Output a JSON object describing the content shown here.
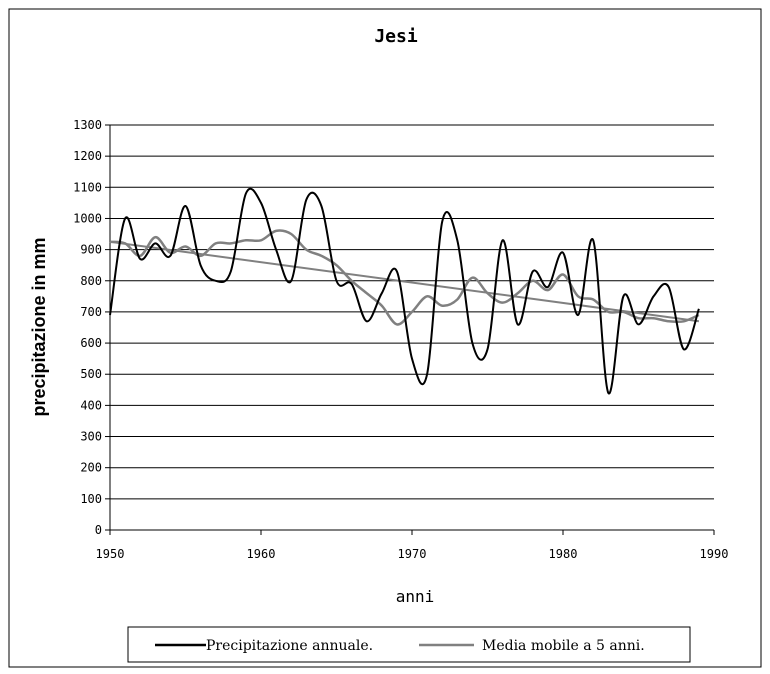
{
  "chart_data": {
    "type": "line",
    "title": "Jesi",
    "xlabel": "anni",
    "ylabel": "precipitazione in mm",
    "xlim": [
      1950,
      1990
    ],
    "ylim": [
      0,
      1300
    ],
    "xticks": [
      "1950",
      "1960",
      "1970",
      "1980",
      "1990"
    ],
    "yticks": [
      "0",
      "100",
      "200",
      "300",
      "400",
      "500",
      "600",
      "700",
      "800",
      "900",
      "1000",
      "1100",
      "1200",
      "1300"
    ],
    "grid": "horizontal",
    "legend_position": "bottom",
    "series": [
      {
        "name": "Precipitazione annuale.",
        "color": "#000000",
        "x": [
          1950,
          1951,
          1952,
          1953,
          1954,
          1955,
          1956,
          1957,
          1958,
          1959,
          1960,
          1961,
          1962,
          1963,
          1964,
          1965,
          1966,
          1967,
          1968,
          1969,
          1970,
          1971,
          1972,
          1973,
          1974,
          1975,
          1976,
          1977,
          1978,
          1979,
          1980,
          1981,
          1982,
          1983,
          1984,
          1985,
          1986,
          1987,
          1988,
          1989
        ],
        "values": [
          690,
          1000,
          870,
          920,
          880,
          1040,
          850,
          800,
          830,
          1080,
          1050,
          900,
          800,
          1060,
          1040,
          800,
          790,
          670,
          760,
          830,
          550,
          500,
          990,
          930,
          600,
          580,
          930,
          660,
          830,
          780,
          890,
          690,
          930,
          440,
          750,
          660,
          750,
          780,
          580,
          710
        ]
      },
      {
        "name": "Media mobile a 5 anni.",
        "color": "#808080",
        "x": [
          1950,
          1951,
          1952,
          1953,
          1954,
          1955,
          1956,
          1957,
          1958,
          1959,
          1960,
          1961,
          1962,
          1963,
          1964,
          1965,
          1966,
          1967,
          1968,
          1969,
          1970,
          1971,
          1972,
          1973,
          1974,
          1975,
          1976,
          1977,
          1978,
          1979,
          1980,
          1981,
          1982,
          1983,
          1984,
          1985,
          1986,
          1987,
          1988,
          1989
        ],
        "values": [
          925,
          920,
          880,
          940,
          890,
          910,
          880,
          920,
          920,
          930,
          930,
          960,
          950,
          900,
          880,
          850,
          800,
          760,
          720,
          660,
          700,
          750,
          720,
          740,
          810,
          760,
          730,
          760,
          800,
          770,
          820,
          750,
          740,
          700,
          700,
          680,
          680,
          670,
          670,
          690
        ]
      },
      {
        "name": "",
        "color": "#808080",
        "x": [
          1950,
          1989
        ],
        "values": [
          925,
          670
        ]
      }
    ]
  },
  "legend": {
    "items": [
      {
        "label": "Precipitazione annuale.",
        "color": "#000000"
      },
      {
        "label": "Media mobile a 5 anni.",
        "color": "#808080"
      }
    ]
  }
}
